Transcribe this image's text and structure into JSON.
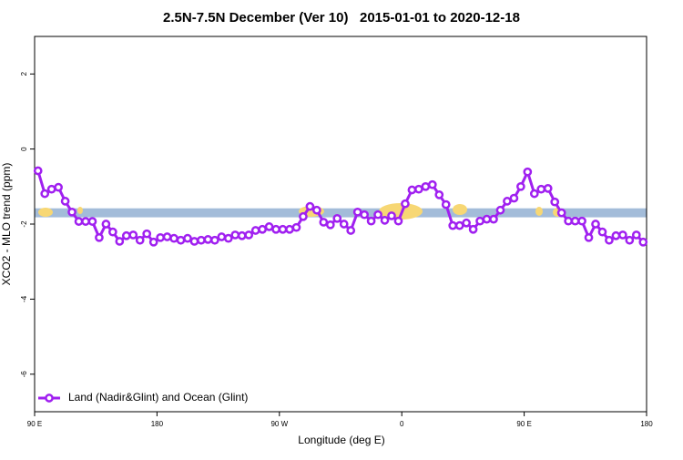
{
  "chart_data": {
    "type": "line",
    "title": "2.5N-7.5N December (Ver 10)   2015-01-01 to 2020-12-18",
    "xlabel": "Longitude (deg E)",
    "ylabel": "XCO2 - MLO trend (ppm)",
    "xlim": [
      90,
      540
    ],
    "xticks": [
      {
        "value": 90,
        "label": "90 E"
      },
      {
        "value": 180,
        "label": "180"
      },
      {
        "value": 270,
        "label": "90 W"
      },
      {
        "value": 360,
        "label": "0"
      },
      {
        "value": 450,
        "label": "90 E"
      },
      {
        "value": 540,
        "label": "180"
      }
    ],
    "ylim": [
      -7,
      3
    ],
    "yticks": [
      2,
      0,
      -2,
      -4,
      -6
    ],
    "legend": "bottomleft",
    "reference_band": {
      "ylim": [
        -1.82,
        -1.58
      ],
      "color": "#a3bcd9"
    },
    "x": [
      92.5,
      97.5,
      102.5,
      107.5,
      112.5,
      117.5,
      122.5,
      127.5,
      132.5,
      137.5,
      142.5,
      147.5,
      152.5,
      157.5,
      162.5,
      167.5,
      172.5,
      177.5,
      182.5,
      187.5,
      192.5,
      197.5,
      202.5,
      207.5,
      212.5,
      217.5,
      222.5,
      227.5,
      232.5,
      237.5,
      242.5,
      247.5,
      252.5,
      257.5,
      262.5,
      267.5,
      272.5,
      277.5,
      282.5,
      287.5,
      292.5,
      297.5,
      302.5,
      307.5,
      312.5,
      317.5,
      322.5,
      327.5,
      332.5,
      337.5,
      342.5,
      347.5,
      352.5,
      357.5,
      362.5,
      367.5,
      372.5,
      377.5,
      382.5,
      387.5,
      392.5,
      397.5,
      402.5,
      407.5,
      412.5,
      417.5,
      422.5,
      427.5,
      432.5,
      437.5,
      442.5,
      447.5,
      452.5,
      457.5,
      462.5,
      467.5,
      472.5,
      477.5,
      482.5,
      487.5,
      492.5,
      497.5,
      502.5,
      507.5,
      512.5,
      517.5,
      522.5,
      527.5,
      532.5,
      537.5
    ],
    "series": [
      {
        "name": "Land (Nadir&Glint) and Ocean (Glint)",
        "color": "#a020f0",
        "values": [
          -0.58,
          -1.19,
          -1.07,
          -1.02,
          -1.39,
          -1.68,
          -1.93,
          -1.93,
          -1.93,
          -2.36,
          -2.0,
          -2.21,
          -2.46,
          -2.31,
          -2.29,
          -2.43,
          -2.26,
          -2.48,
          -2.36,
          -2.34,
          -2.38,
          -2.43,
          -2.38,
          -2.46,
          -2.43,
          -2.41,
          -2.43,
          -2.34,
          -2.38,
          -2.29,
          -2.31,
          -2.29,
          -2.17,
          -2.14,
          -2.07,
          -2.14,
          -2.14,
          -2.14,
          -2.09,
          -1.8,
          -1.53,
          -1.63,
          -1.95,
          -2.02,
          -1.85,
          -2.0,
          -2.17,
          -1.68,
          -1.75,
          -1.92,
          -1.75,
          -1.9,
          -1.78,
          -1.92,
          -1.46,
          -1.09,
          -1.07,
          -1.0,
          -0.95,
          -1.22,
          -1.48,
          -2.04,
          -2.04,
          -1.97,
          -2.14,
          -1.92,
          -1.87,
          -1.87,
          -1.63,
          -1.39,
          -1.31,
          -1.0,
          -0.61,
          -1.19,
          -1.07,
          -1.05,
          -1.41,
          -1.7,
          -1.92,
          -1.92,
          -1.92,
          -2.36,
          -2.0,
          -2.21,
          -2.43,
          -2.31,
          -2.29,
          -2.43,
          -2.29,
          -2.48
        ]
      }
    ]
  }
}
